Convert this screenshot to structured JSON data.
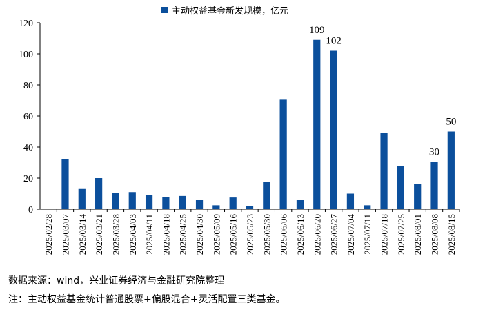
{
  "chart_data": {
    "type": "bar",
    "title": "",
    "legend": [
      "主动权益基金新发规模，亿元"
    ],
    "series": [
      {
        "name": "主动权益基金新发规模，亿元",
        "color": "#0b4f9c",
        "values": [
          0,
          32,
          13,
          20,
          10.5,
          11,
          9,
          8,
          8.5,
          6,
          2.5,
          7.5,
          2,
          17.5,
          70.5,
          6,
          109,
          102,
          10,
          2.5,
          49,
          28,
          16,
          30.5,
          50
        ]
      }
    ],
    "categories": [
      "2025/02/28",
      "2025/03/07",
      "2025/03/14",
      "2025/03/21",
      "2025/03/28",
      "2025/04/03",
      "2025/04/11",
      "2025/04/18",
      "2025/04/25",
      "2025/04/30",
      "2025/05/09",
      "2025/05/16",
      "2025/05/23",
      "2025/05/30",
      "2025/06/06",
      "2025/06/13",
      "2025/06/20",
      "2025/06/27",
      "2025/07/04",
      "2025/07/11",
      "2025/07/18",
      "2025/07/25",
      "2025/08/01",
      "2025/08/08",
      "2025/08/15"
    ],
    "data_labels": [
      {
        "category": "2025/06/20",
        "text": "109"
      },
      {
        "category": "2025/06/27",
        "text": "102"
      },
      {
        "category": "2025/08/08",
        "text": "30"
      },
      {
        "category": "2025/08/15",
        "text": "50"
      }
    ],
    "ylim": [
      0,
      120
    ],
    "yticks": [
      0,
      20,
      40,
      60,
      80,
      100,
      120
    ],
    "xlabel": "",
    "ylabel": "",
    "grid": false,
    "legend_position": "top-center"
  },
  "footnotes": {
    "source": "数据来源：wind，兴业证券经济与金融研究院整理",
    "note": "注：主动权益基金统计普通股票+偏股混合+灵活配置三类基金。"
  }
}
